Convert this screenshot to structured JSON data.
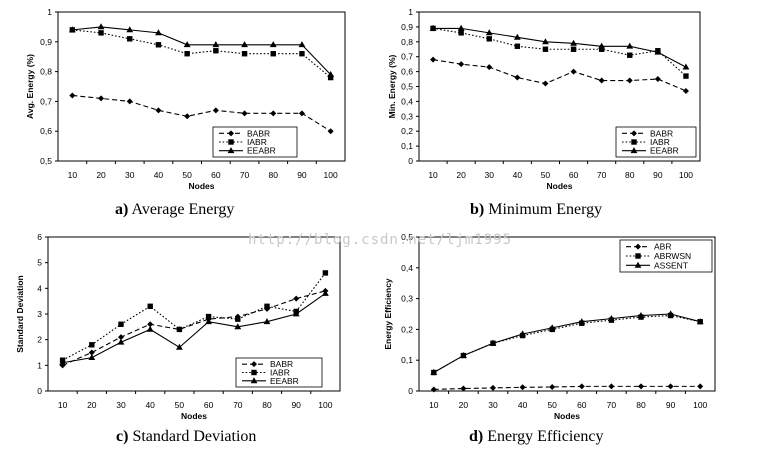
{
  "watermark": "http://blog.csdn.net/ljm1995",
  "chart_data": [
    {
      "id": "a",
      "type": "line",
      "caption_letter": "a)",
      "caption_text": "Average Energy",
      "xlabel": "Nodes",
      "ylabel": "Avg. Energy (%)",
      "x": [
        10,
        20,
        30,
        40,
        50,
        60,
        70,
        80,
        90,
        100
      ],
      "ylim": [
        0.5,
        1
      ],
      "yticks": [
        1,
        0.9,
        0.8,
        0.7,
        0.6,
        0.5
      ],
      "ytick_labels": [
        "1",
        "0,9",
        "0,8",
        "0,7",
        "0,6",
        "0,5"
      ],
      "legend_position": "bottom-right",
      "grid": false,
      "series": [
        {
          "name": "BABR",
          "marker": "diamond",
          "dash": "dashed",
          "values": [
            0.72,
            0.71,
            0.7,
            0.67,
            0.65,
            0.67,
            0.66,
            0.66,
            0.66,
            0.6
          ]
        },
        {
          "name": "IABR",
          "marker": "square",
          "dash": "dotted",
          "values": [
            0.94,
            0.93,
            0.91,
            0.89,
            0.86,
            0.87,
            0.86,
            0.86,
            0.86,
            0.78
          ]
        },
        {
          "name": "EEABR",
          "marker": "triangle",
          "dash": "solid",
          "values": [
            0.94,
            0.95,
            0.94,
            0.93,
            0.89,
            0.89,
            0.89,
            0.89,
            0.89,
            0.79
          ]
        }
      ]
    },
    {
      "id": "b",
      "type": "line",
      "caption_letter": "b)",
      "caption_text": "Minimum Energy",
      "xlabel": "Nodes",
      "ylabel": "Min. Energy (%)",
      "x": [
        10,
        20,
        30,
        40,
        50,
        60,
        70,
        80,
        90,
        100
      ],
      "ylim": [
        0,
        1
      ],
      "yticks": [
        1,
        0.9,
        0.8,
        0.7,
        0.6,
        0.5,
        0.4,
        0.3,
        0.2,
        0.1,
        0
      ],
      "ytick_labels": [
        "1",
        "0,9",
        "0,8",
        "0,7",
        "0,6",
        "0,5",
        "0,4",
        "0,3",
        "0,2",
        "0,1",
        "0"
      ],
      "legend_position": "bottom-right",
      "grid": false,
      "series": [
        {
          "name": "BABR",
          "marker": "diamond",
          "dash": "dashed",
          "values": [
            0.68,
            0.65,
            0.63,
            0.56,
            0.52,
            0.6,
            0.54,
            0.54,
            0.55,
            0.47
          ]
        },
        {
          "name": "IABR",
          "marker": "square",
          "dash": "dotted",
          "values": [
            0.89,
            0.86,
            0.82,
            0.77,
            0.75,
            0.75,
            0.75,
            0.71,
            0.74,
            0.57
          ]
        },
        {
          "name": "EEABR",
          "marker": "triangle",
          "dash": "solid",
          "values": [
            0.89,
            0.89,
            0.86,
            0.83,
            0.8,
            0.79,
            0.77,
            0.77,
            0.73,
            0.63
          ]
        }
      ]
    },
    {
      "id": "c",
      "type": "line",
      "caption_letter": "c)",
      "caption_text": "Standard Deviation",
      "xlabel": "Nodes",
      "ylabel": "Standard Deviation",
      "x": [
        10,
        20,
        30,
        40,
        50,
        60,
        70,
        80,
        90,
        100
      ],
      "ylim": [
        0,
        6
      ],
      "yticks": [
        6,
        5,
        4,
        3,
        2,
        1,
        0
      ],
      "ytick_labels": [
        "6",
        "5",
        "4",
        "3",
        "2",
        "1",
        "0"
      ],
      "legend_position": "bottom-right",
      "grid": false,
      "series": [
        {
          "name": "BABR",
          "marker": "diamond",
          "dash": "dashed",
          "values": [
            1.0,
            1.5,
            2.1,
            2.6,
            2.4,
            2.8,
            2.9,
            3.2,
            3.6,
            3.9
          ]
        },
        {
          "name": "IABR",
          "marker": "square",
          "dash": "dotted",
          "values": [
            1.2,
            1.8,
            2.6,
            3.3,
            2.4,
            2.9,
            2.8,
            3.3,
            3.1,
            4.6
          ]
        },
        {
          "name": "EEABR",
          "marker": "triangle",
          "dash": "solid",
          "values": [
            1.1,
            1.3,
            1.9,
            2.4,
            1.7,
            2.7,
            2.5,
            2.7,
            3.0,
            3.8
          ]
        }
      ]
    },
    {
      "id": "d",
      "type": "line",
      "caption_letter": "d)",
      "caption_text": "Energy Efficiency",
      "xlabel": "Nodes",
      "ylabel": "Energy Efficiency",
      "x": [
        10,
        20,
        30,
        40,
        50,
        60,
        70,
        80,
        90,
        100
      ],
      "ylim": [
        0,
        0.5
      ],
      "yticks": [
        0.5,
        0.4,
        0.3,
        0.2,
        0.1,
        0
      ],
      "ytick_labels": [
        "0,5",
        "0,4",
        "0,3",
        "0,2",
        "0,1",
        "0"
      ],
      "legend_position": "top-right",
      "grid": false,
      "series": [
        {
          "name": "ABR",
          "marker": "diamond",
          "dash": "dashed",
          "values": [
            0.005,
            0.008,
            0.01,
            0.012,
            0.013,
            0.015,
            0.015,
            0.015,
            0.015,
            0.015
          ]
        },
        {
          "name": "ABRWSN",
          "marker": "square",
          "dash": "dotted",
          "values": [
            0.06,
            0.115,
            0.155,
            0.18,
            0.2,
            0.22,
            0.23,
            0.24,
            0.245,
            0.225
          ]
        },
        {
          "name": "ASSENT",
          "marker": "triangle",
          "dash": "solid",
          "values": [
            0.06,
            0.115,
            0.155,
            0.185,
            0.205,
            0.225,
            0.235,
            0.245,
            0.25,
            0.225
          ]
        }
      ]
    }
  ]
}
